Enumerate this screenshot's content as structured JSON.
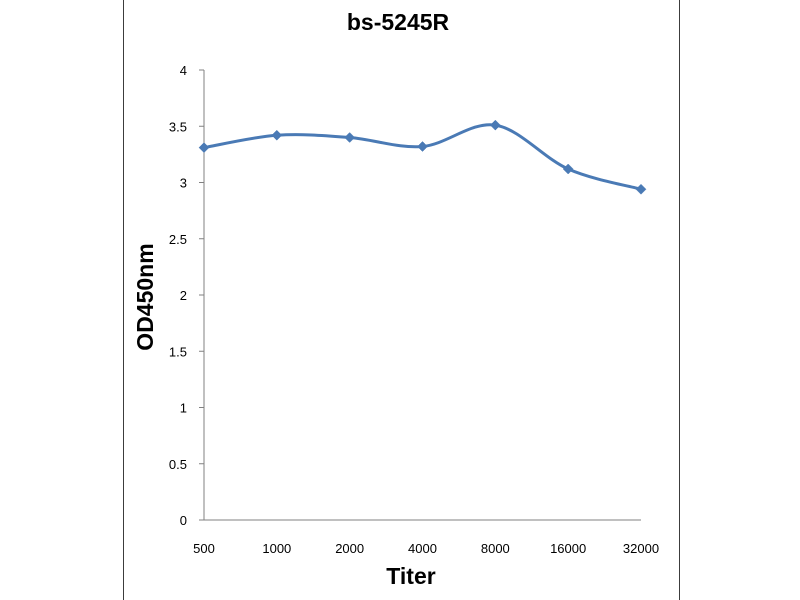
{
  "chart_data": {
    "type": "line",
    "title": "bs-5245R",
    "xlabel": "Titer",
    "ylabel": "OD450nm",
    "categories": [
      "500",
      "1000",
      "2000",
      "4000",
      "8000",
      "16000",
      "32000"
    ],
    "series": [
      {
        "values": [
          3.31,
          3.42,
          3.4,
          3.32,
          3.51,
          3.12,
          2.94
        ]
      }
    ],
    "ylim": [
      0,
      4
    ],
    "yticks": [
      "0",
      "0.5",
      "1",
      "1.5",
      "2",
      "2.5",
      "3",
      "3.5",
      "4"
    ],
    "grid": false,
    "legend": "none",
    "colors": {
      "line": "#4a7ab5",
      "axis": "#808080",
      "frame": "#3c3c3c"
    }
  }
}
